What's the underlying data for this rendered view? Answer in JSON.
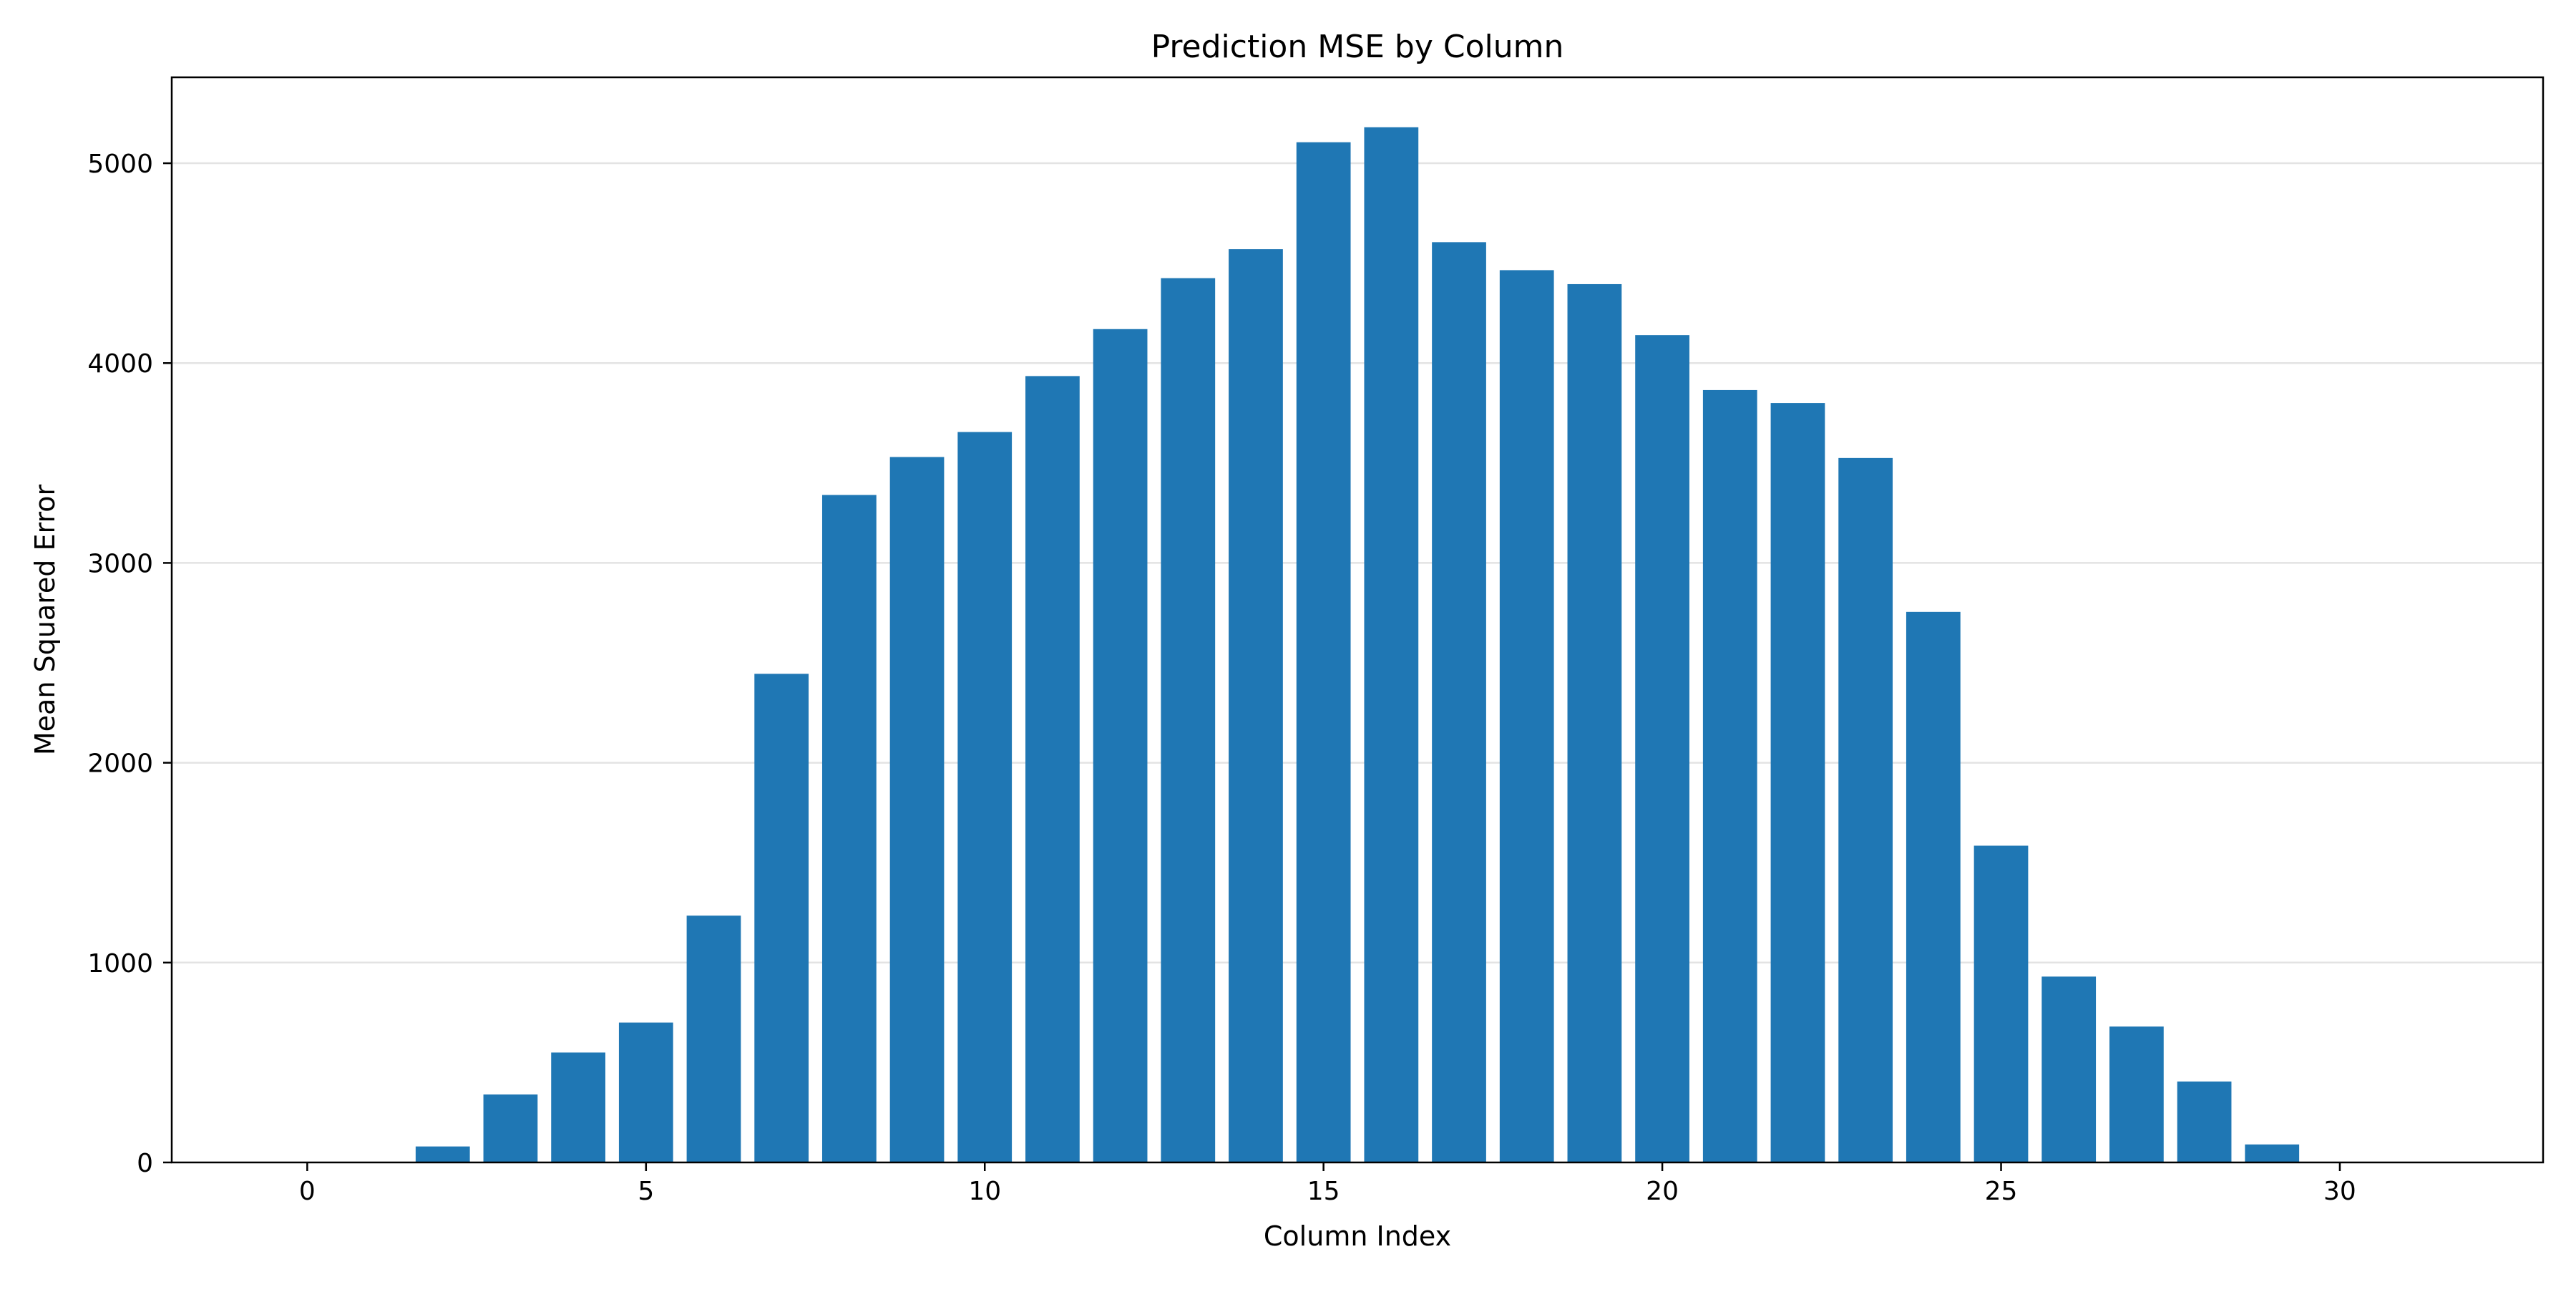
{
  "chart_data": {
    "type": "bar",
    "title": "Prediction MSE by Column",
    "xlabel": "Column Index",
    "ylabel": "Mean Squared Error",
    "x": [
      0,
      1,
      2,
      3,
      4,
      5,
      6,
      7,
      8,
      9,
      10,
      11,
      12,
      13,
      14,
      15,
      16,
      17,
      18,
      19,
      20,
      21,
      22,
      23,
      24,
      25,
      26,
      27,
      28,
      29,
      30,
      31
    ],
    "values": [
      0,
      0,
      80,
      340,
      550,
      700,
      1235,
      2445,
      3340,
      3530,
      3655,
      3935,
      4170,
      4425,
      4570,
      5105,
      5180,
      4605,
      4465,
      4395,
      4140,
      3865,
      3800,
      3525,
      2755,
      1585,
      930,
      680,
      405,
      90,
      0,
      0
    ],
    "xlim": [
      -2,
      33
    ],
    "ylim": [
      0,
      5430
    ],
    "xticks": [
      0,
      5,
      10,
      15,
      20,
      25,
      30
    ],
    "yticks": [
      0,
      1000,
      2000,
      3000,
      4000,
      5000
    ],
    "xtick_labels": [
      "0",
      "5",
      "10",
      "15",
      "20",
      "25",
      "30"
    ],
    "ytick_labels": [
      "0",
      "1000",
      "2000",
      "3000",
      "4000",
      "5000"
    ],
    "grid": {
      "y": true,
      "x": false
    },
    "bar_color": "#1f77b4"
  }
}
